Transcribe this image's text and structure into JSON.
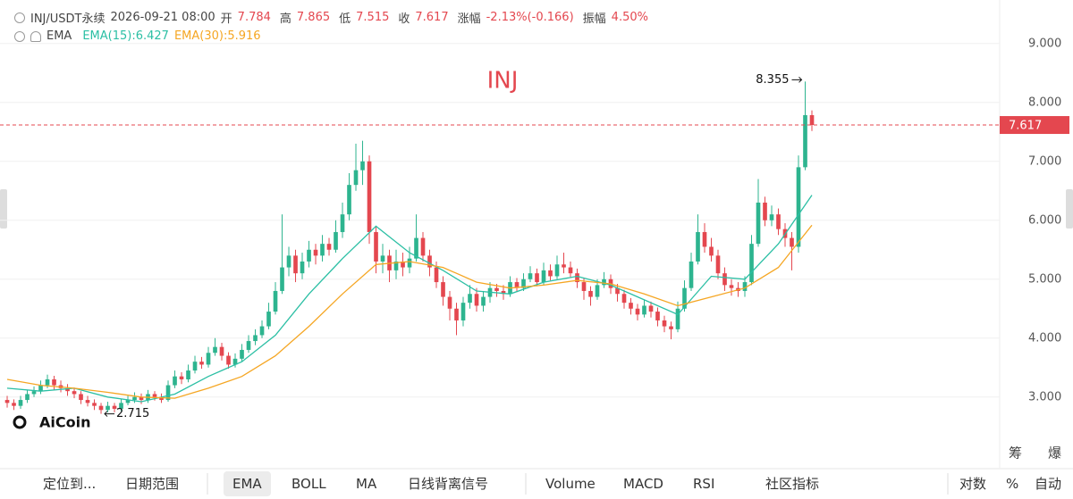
{
  "chart_data": {
    "type": "candlestick",
    "title": "INJ",
    "symbol": "INJ/USDT永续",
    "time": "2026-09-21 08:00",
    "ohlc_labels": [
      "开",
      "高",
      "低",
      "收"
    ],
    "change_label": "涨幅",
    "change": "-2.13%(-0.166)",
    "amplitude_label": "振幅",
    "amplitude": "4.50%",
    "indicator": "EMA",
    "max_label": "8.355",
    "min_label": "2.715",
    "up_color": "#2db48f",
    "down_color": "#e4474f",
    "xlim": [
      -1.07,
      148
    ],
    "ylim": [
      1.86,
      9.36
    ],
    "yticks": [
      {
        "value": 3,
        "label": "3.000"
      },
      {
        "value": 4,
        "label": "4.000"
      },
      {
        "value": 5,
        "label": "5.000"
      },
      {
        "value": 6,
        "label": "6.000"
      },
      {
        "value": 7,
        "label": "7.000"
      },
      {
        "value": 8,
        "label": "8.000"
      },
      {
        "value": 9,
        "label": "9.000"
      }
    ],
    "grid": true,
    "open": [
      2.95,
      2.9,
      2.85,
      2.95,
      3.05,
      3.1,
      3.2,
      3.3,
      3.2,
      3.15,
      3.1,
      3.05,
      2.95,
      2.9,
      2.85,
      2.78,
      2.85,
      2.8,
      2.9,
      2.95,
      3.0,
      2.95,
      3.05,
      3.0,
      2.95,
      3.2,
      3.35,
      3.3,
      3.45,
      3.6,
      3.55,
      3.75,
      3.85,
      3.7,
      3.55,
      3.65,
      3.8,
      3.95,
      4.05,
      4.2,
      4.45,
      4.8,
      5.2,
      5.4,
      5.1,
      5.3,
      5.5,
      5.4,
      5.6,
      5.5,
      5.8,
      6.1,
      6.6,
      6.85,
      7.0,
      5.8,
      5.3,
      5.4,
      5.15,
      5.3,
      5.2,
      5.35,
      5.7,
      5.4,
      5.2,
      4.95,
      4.7,
      4.5,
      4.3,
      4.6,
      4.75,
      4.55,
      4.7,
      4.85,
      4.8,
      4.75,
      4.95,
      4.85,
      5.0,
      5.1,
      4.95,
      5.15,
      5.05,
      5.25,
      5.2,
      5.1,
      4.95,
      4.8,
      4.7,
      4.9,
      5.0,
      4.85,
      4.75,
      4.6,
      4.5,
      4.4,
      4.55,
      4.45,
      4.3,
      4.2,
      4.15,
      4.5,
      4.85,
      5.3,
      5.8,
      5.55,
      5.4,
      5.1,
      4.9,
      4.85,
      4.8,
      4.95,
      5.6,
      6.3,
      6.0,
      6.1,
      5.85,
      5.7,
      5.55,
      6.9,
      7.784
    ],
    "high": [
      3.02,
      2.96,
      3.02,
      3.12,
      3.18,
      3.28,
      3.38,
      3.36,
      3.28,
      3.22,
      3.16,
      3.1,
      3.02,
      2.96,
      2.9,
      2.92,
      2.9,
      2.96,
      3.02,
      3.08,
      3.06,
      3.12,
      3.1,
      3.06,
      3.28,
      3.45,
      3.42,
      3.55,
      3.7,
      3.68,
      3.85,
      4.0,
      3.92,
      3.76,
      3.74,
      3.9,
      4.05,
      4.15,
      4.3,
      4.6,
      4.95,
      6.1,
      5.55,
      5.5,
      5.45,
      5.65,
      5.6,
      5.75,
      5.7,
      6.0,
      6.3,
      6.8,
      7.3,
      7.35,
      7.1,
      5.9,
      5.6,
      5.5,
      5.5,
      5.45,
      5.55,
      6.1,
      5.8,
      5.5,
      5.3,
      5.05,
      4.8,
      4.6,
      4.7,
      4.9,
      4.85,
      4.8,
      4.95,
      4.92,
      4.9,
      5.05,
      5.02,
      5.1,
      5.22,
      5.18,
      5.28,
      5.25,
      5.4,
      5.45,
      5.3,
      5.18,
      5.02,
      4.88,
      5.0,
      5.12,
      5.08,
      4.92,
      4.82,
      4.68,
      4.58,
      4.65,
      4.62,
      4.52,
      4.38,
      4.28,
      4.62,
      4.98,
      5.45,
      6.1,
      5.95,
      5.7,
      5.5,
      5.2,
      5.0,
      4.95,
      5.05,
      5.75,
      6.7,
      6.4,
      6.25,
      6.2,
      5.95,
      5.8,
      7.1,
      8.355,
      7.865
    ],
    "low": [
      2.82,
      2.78,
      2.8,
      2.9,
      3.0,
      3.05,
      3.15,
      3.12,
      3.08,
      3.02,
      2.98,
      2.88,
      2.84,
      2.78,
      2.715,
      2.74,
      2.74,
      2.76,
      2.86,
      2.9,
      2.88,
      2.9,
      2.94,
      2.9,
      2.92,
      3.15,
      3.22,
      3.25,
      3.4,
      3.48,
      3.5,
      3.7,
      3.62,
      3.48,
      3.5,
      3.6,
      3.75,
      3.88,
      4.0,
      4.15,
      4.4,
      4.75,
      5.05,
      4.95,
      5.0,
      5.2,
      5.25,
      5.3,
      5.4,
      5.45,
      5.7,
      6.0,
      6.5,
      6.6,
      5.6,
      5.1,
      5.1,
      4.95,
      5.0,
      5.05,
      5.1,
      5.3,
      5.3,
      5.05,
      4.85,
      4.55,
      4.3,
      4.05,
      4.2,
      4.5,
      4.45,
      4.45,
      4.6,
      4.7,
      4.65,
      4.7,
      4.78,
      4.8,
      4.95,
      4.88,
      4.9,
      4.98,
      5.0,
      5.1,
      5.02,
      4.85,
      4.65,
      4.55,
      4.65,
      4.85,
      4.75,
      4.62,
      4.5,
      4.4,
      4.3,
      4.35,
      4.35,
      4.2,
      4.1,
      3.98,
      4.1,
      4.45,
      4.8,
      5.25,
      5.45,
      5.3,
      5.0,
      4.8,
      4.72,
      4.7,
      4.7,
      4.9,
      5.55,
      5.9,
      5.9,
      5.75,
      5.55,
      5.15,
      5.45,
      6.85,
      7.515
    ],
    "close": [
      2.9,
      2.85,
      2.95,
      3.05,
      3.1,
      3.2,
      3.3,
      3.2,
      3.15,
      3.1,
      3.05,
      2.95,
      2.9,
      2.85,
      2.78,
      2.85,
      2.8,
      2.9,
      2.95,
      3.0,
      2.95,
      3.05,
      3.0,
      2.95,
      3.2,
      3.35,
      3.3,
      3.45,
      3.6,
      3.55,
      3.75,
      3.85,
      3.7,
      3.55,
      3.65,
      3.8,
      3.95,
      4.05,
      4.2,
      4.45,
      4.8,
      5.2,
      5.4,
      5.1,
      5.3,
      5.5,
      5.4,
      5.6,
      5.5,
      5.8,
      6.1,
      6.6,
      6.85,
      7.0,
      5.8,
      5.3,
      5.4,
      5.15,
      5.3,
      5.2,
      5.35,
      5.7,
      5.4,
      5.2,
      4.95,
      4.7,
      4.5,
      4.3,
      4.6,
      4.75,
      4.55,
      4.7,
      4.85,
      4.8,
      4.75,
      4.95,
      4.85,
      5.0,
      5.1,
      4.95,
      5.15,
      5.05,
      5.25,
      5.2,
      5.1,
      4.95,
      4.8,
      4.7,
      4.9,
      5.0,
      4.85,
      4.75,
      4.6,
      4.5,
      4.4,
      4.55,
      4.45,
      4.3,
      4.2,
      4.15,
      4.5,
      4.85,
      5.3,
      5.8,
      5.55,
      5.4,
      5.1,
      4.9,
      4.85,
      4.8,
      4.95,
      5.6,
      6.3,
      6.0,
      6.1,
      5.85,
      5.7,
      5.55,
      6.9,
      7.784,
      7.617
    ],
    "series": [
      {
        "name": "EMA(15):6.427",
        "color": "#2bbfa4",
        "x": [
          0,
          5,
          10,
          15,
          20,
          25,
          30,
          35,
          40,
          45,
          50,
          55,
          60,
          65,
          70,
          75,
          80,
          85,
          90,
          95,
          100,
          105,
          110,
          115,
          120
        ],
        "values": [
          3.15,
          3.1,
          3.15,
          3.0,
          2.92,
          3.05,
          3.35,
          3.6,
          4.05,
          4.75,
          5.35,
          5.9,
          5.45,
          5.15,
          4.8,
          4.75,
          4.95,
          5.05,
          4.9,
          4.65,
          4.4,
          5.05,
          5.0,
          5.6,
          6.427
        ]
      },
      {
        "name": "EMA(30):5.916",
        "color": "#f5a623",
        "x": [
          0,
          5,
          10,
          15,
          20,
          25,
          30,
          35,
          40,
          45,
          50,
          55,
          60,
          65,
          70,
          75,
          80,
          85,
          90,
          95,
          100,
          105,
          110,
          115,
          120
        ],
        "values": [
          3.3,
          3.2,
          3.15,
          3.08,
          3.0,
          2.98,
          3.15,
          3.35,
          3.7,
          4.2,
          4.75,
          5.25,
          5.3,
          5.2,
          4.95,
          4.85,
          4.9,
          4.98,
          4.92,
          4.75,
          4.55,
          4.7,
          4.85,
          5.2,
          5.916
        ]
      }
    ]
  },
  "watermark": "AiCoin",
  "side_labels": [
    "筹",
    "爆"
  ],
  "toolbar": {
    "items": [
      "定位到...",
      "日期范围",
      "EMA",
      "BOLL",
      "MA",
      "日线背离信号",
      "Volume",
      "MACD",
      "RSI",
      "社区指标",
      "对数",
      "%",
      "自动"
    ]
  }
}
